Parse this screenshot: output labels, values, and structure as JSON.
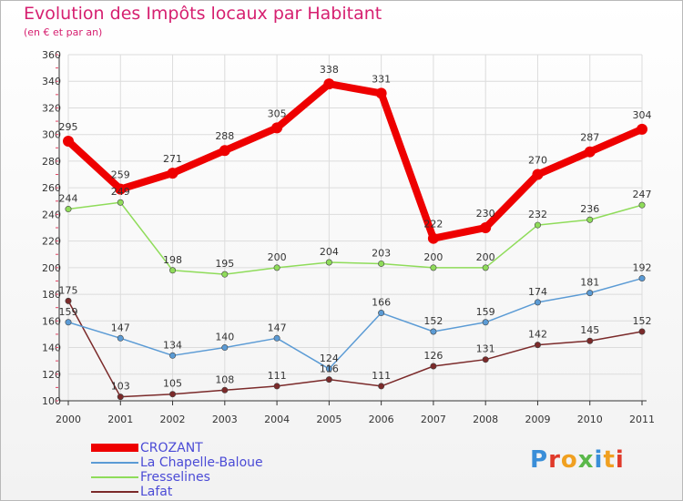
{
  "title": "Evolution des Impôts locaux par Habitant",
  "subtitle": "(en € et par an)",
  "logo": {
    "text": "Proxiti",
    "colors": [
      "#3a8ed8",
      "#e03a2a",
      "#f0a020",
      "#5ab84a",
      "#3a8ed8",
      "#f0a020",
      "#e03a2a"
    ]
  },
  "chart_data": {
    "type": "line",
    "x": [
      "2000",
      "2001",
      "2002",
      "2003",
      "2004",
      "2005",
      "2006",
      "2007",
      "2008",
      "2009",
      "2010",
      "2011"
    ],
    "ylim": [
      100,
      360
    ],
    "yticks": [
      "100",
      "120",
      "140",
      "160",
      "180",
      "200",
      "220",
      "240",
      "260",
      "280",
      "300",
      "320",
      "340",
      "360"
    ],
    "grid": true,
    "legend_position": "bottom-left",
    "series": [
      {
        "name": "CROZANT",
        "color": "#ee0000",
        "values": [
          295,
          259,
          271,
          288,
          305,
          338,
          331,
          222,
          230,
          270,
          287,
          304
        ],
        "labels": [
          "295",
          "259",
          "271",
          "288",
          "305",
          "338",
          "331",
          "222",
          "230",
          "270",
          "287",
          "304"
        ]
      },
      {
        "name": "La Chapelle-Baloue",
        "color": "#5b9bd5",
        "values": [
          159,
          147,
          134,
          140,
          147,
          124,
          166,
          152,
          159,
          174,
          181,
          192
        ],
        "labels": [
          "159",
          "147",
          "134",
          "140",
          "147",
          "124",
          "166",
          "152",
          "159",
          "174",
          "181",
          "192"
        ]
      },
      {
        "name": "Fresselines",
        "color": "#8fdc5a",
        "values": [
          244,
          249,
          198,
          195,
          200,
          204,
          203,
          200,
          200,
          232,
          236,
          247
        ],
        "labels": [
          "244",
          "249",
          "198",
          "195",
          "200",
          "204",
          "203",
          "200",
          "200",
          "232",
          "236",
          "247"
        ]
      },
      {
        "name": "Lafat",
        "color": "#7b2a2a",
        "values": [
          175,
          103,
          105,
          108,
          111,
          116,
          111,
          126,
          131,
          142,
          145,
          152
        ],
        "labels": [
          "175",
          "103",
          "105",
          "108",
          "111",
          "116",
          "111",
          "126",
          "131",
          "142",
          "145",
          "152"
        ]
      }
    ]
  }
}
